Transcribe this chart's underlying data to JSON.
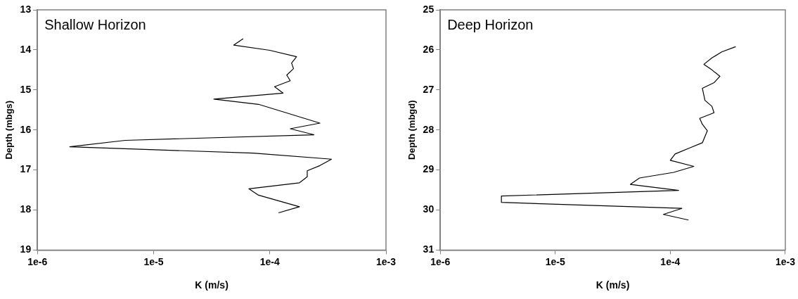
{
  "chart_data": [
    {
      "type": "line",
      "title": "Shallow Horizon",
      "xlabel": "K (m/s)",
      "ylabel": "Depth (mbgs)",
      "log": "x",
      "grid": false,
      "legend": false,
      "marker": "none",
      "line_style": "solid",
      "xlim": [
        1e-06,
        0.001
      ],
      "xticks": [
        {
          "value": 1e-06,
          "label": "1e-6"
        },
        {
          "value": 1e-05,
          "label": "1e-5"
        },
        {
          "value": 0.0001,
          "label": "1e-4"
        },
        {
          "value": 0.001,
          "label": "1e-3"
        }
      ],
      "ylim": [
        19,
        13
      ],
      "yticks": [
        13,
        14,
        15,
        16,
        17,
        18,
        19
      ],
      "series": [
        {
          "color": "#000000",
          "x": [
            5.9e-05,
            4.9e-05,
            0.0001,
            0.00017,
            0.000154,
            0.00016,
            0.00014,
            0.00015,
            0.00011,
            0.00013,
            3.3e-05,
            8e-05,
            0.00027,
            0.00015,
            0.00024,
            5.7e-06,
            1.9e-06,
            7.2e-05,
            0.00034,
            0.00027,
            0.00021,
            0.00021,
            0.00018,
            6.6e-05,
            8e-05,
            0.00018,
            0.000119
          ],
          "values": [
            13.72,
            13.88,
            14.01,
            14.17,
            14.33,
            14.47,
            14.63,
            14.77,
            14.92,
            15.08,
            15.23,
            15.36,
            15.83,
            15.97,
            16.12,
            16.26,
            16.42,
            16.58,
            16.73,
            16.89,
            17.02,
            17.17,
            17.32,
            17.47,
            17.63,
            17.92,
            18.07
          ]
        }
      ]
    },
    {
      "type": "line",
      "title": "Deep Horizon",
      "xlabel": "K (m/s)",
      "ylabel": "Depth (mbgd)",
      "log": "x",
      "grid": false,
      "legend": false,
      "marker": "none",
      "line_style": "solid",
      "xlim": [
        1e-06,
        0.001
      ],
      "xticks": [
        {
          "value": 1e-06,
          "label": "1e-6"
        },
        {
          "value": 1e-05,
          "label": "1e-5"
        },
        {
          "value": 0.0001,
          "label": "1e-4"
        },
        {
          "value": 0.001,
          "label": "1e-3"
        }
      ],
      "ylim": [
        31,
        25
      ],
      "yticks": [
        25,
        26,
        27,
        28,
        29,
        30,
        31
      ],
      "series": [
        {
          "color": "#000000",
          "x": [
            0.00037,
            0.00028,
            0.00023,
            0.000196,
            0.00023,
            0.00027,
            0.00024,
            0.00019,
            0.000195,
            0.0002,
            0.00023,
            0.00024,
            0.00018,
            0.00019,
            0.00021,
            0.00019,
            0.00015,
            0.00011,
            0.0001,
            0.00016,
            0.000107,
            5.4e-05,
            4.5e-05,
            0.000118,
            3.4e-06,
            3.4e-06,
            0.000126,
            8.7e-05,
            0.000144
          ],
          "values": [
            25.92,
            26.05,
            26.2,
            26.36,
            26.5,
            26.66,
            26.82,
            26.96,
            27.11,
            27.26,
            27.41,
            27.57,
            27.71,
            27.86,
            28.02,
            28.32,
            28.44,
            28.6,
            28.76,
            28.91,
            29.06,
            29.2,
            29.36,
            29.51,
            29.65,
            29.81,
            29.96,
            30.11,
            30.25
          ]
        }
      ]
    }
  ]
}
